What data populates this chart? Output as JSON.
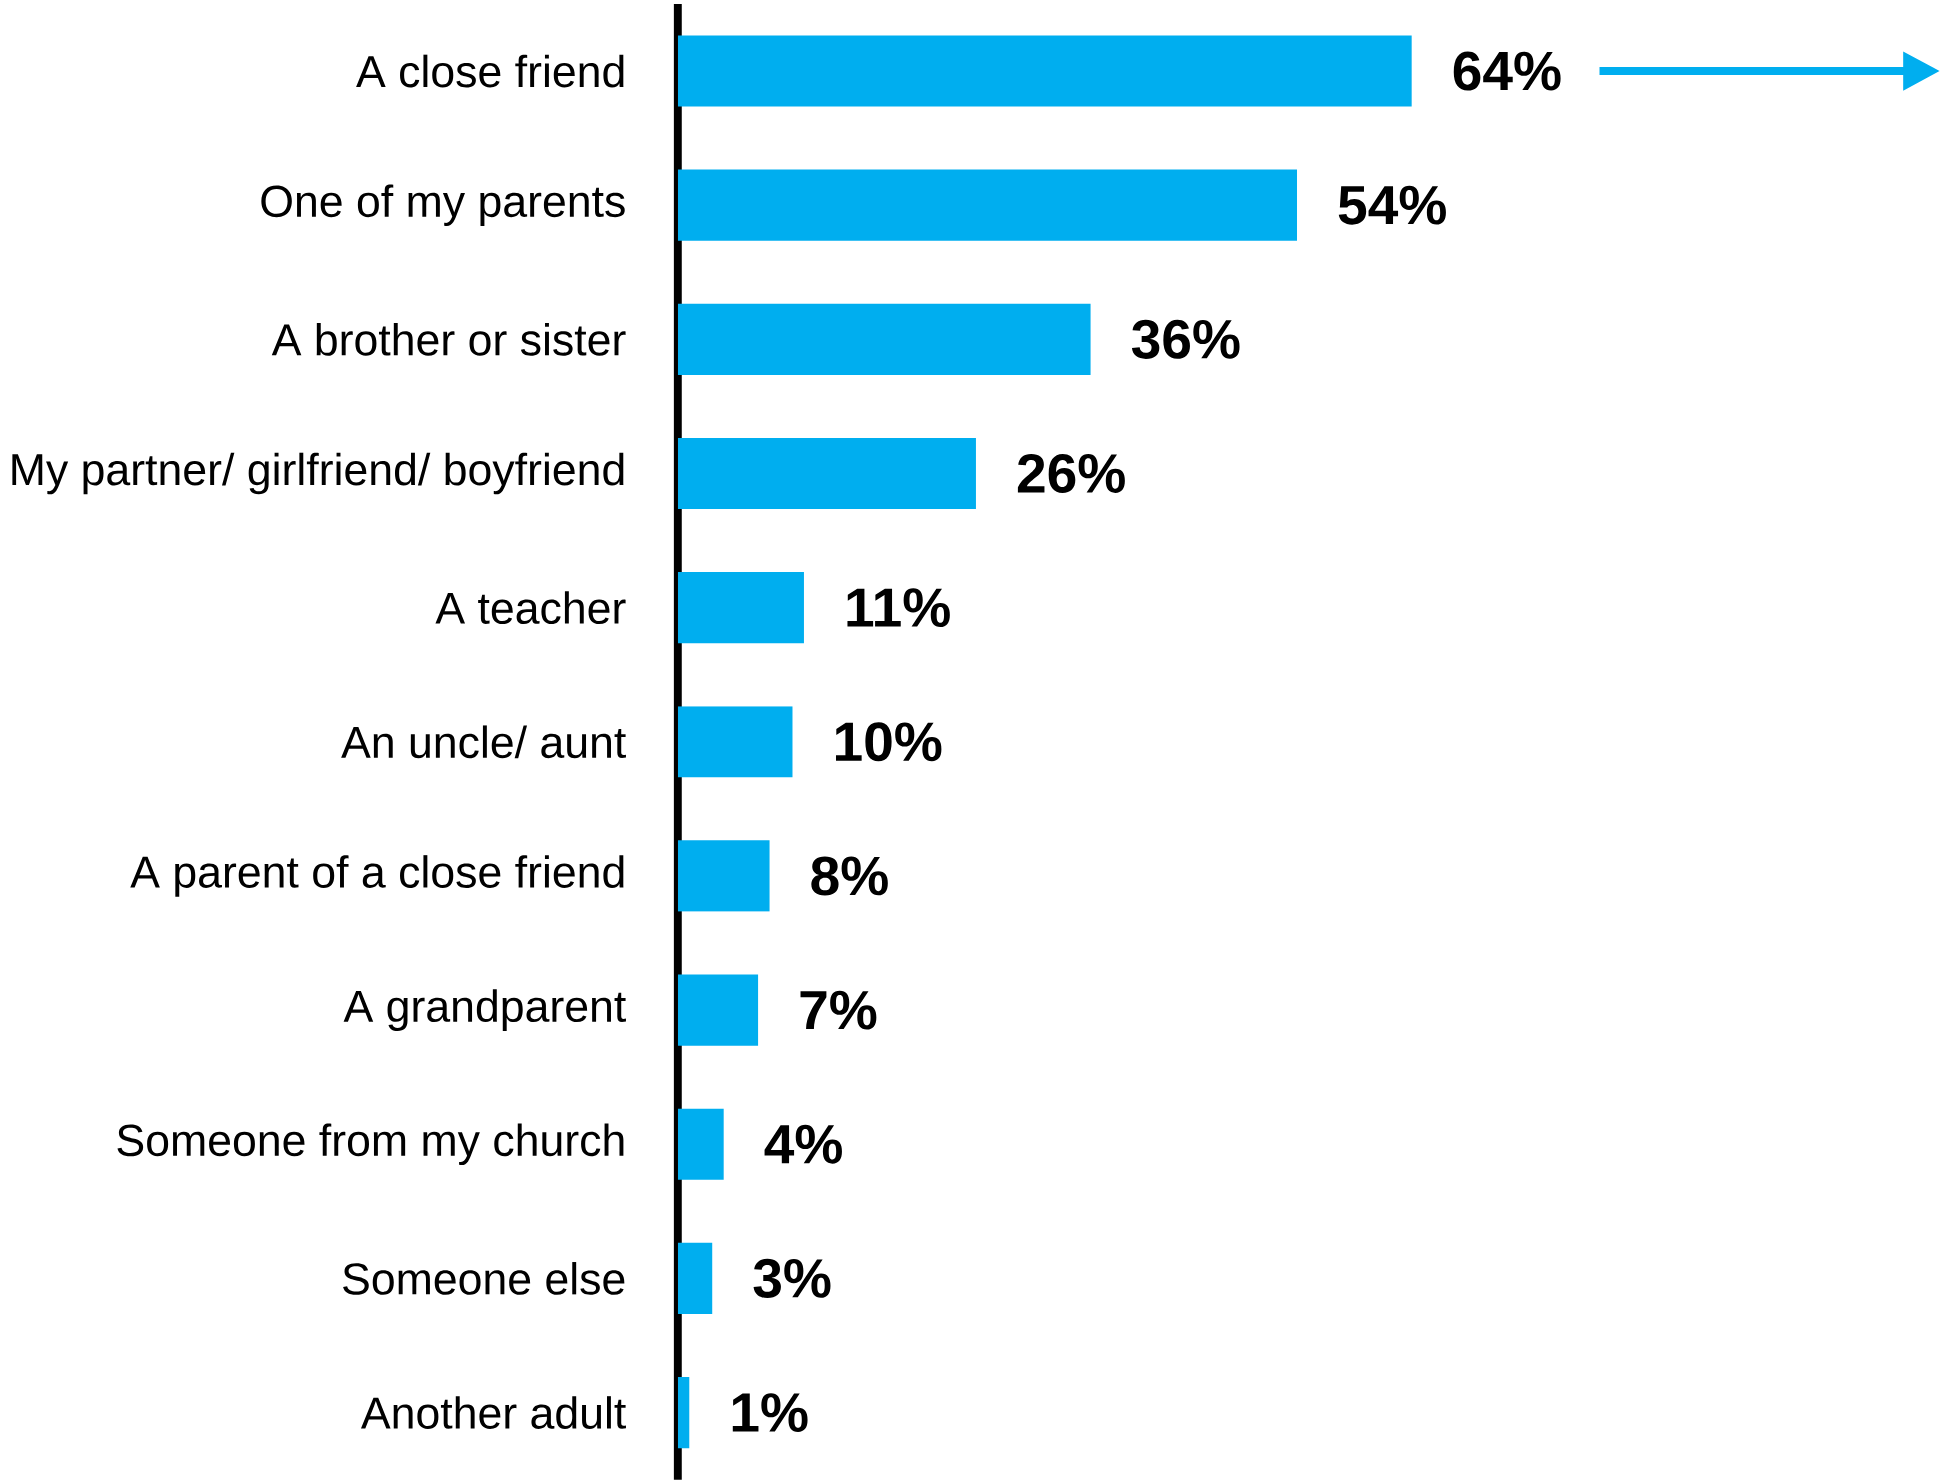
{
  "chart_data": {
    "type": "bar",
    "orientation": "horizontal",
    "categories": [
      "A close friend",
      "One of my parents",
      "A brother or sister",
      "My partner/ girlfriend/ boyfriend",
      "A teacher",
      "An uncle/ aunt",
      "A parent of a close friend",
      "A grandparent",
      "Someone from my church",
      "Someone else",
      "Another adult"
    ],
    "values": [
      64,
      54,
      36,
      26,
      11,
      10,
      8,
      7,
      4,
      3,
      1
    ],
    "value_labels": [
      "64%",
      "54%",
      "36%",
      "26%",
      "11%",
      "10%",
      "8%",
      "7%",
      "4%",
      "3%",
      "1%"
    ],
    "color": "#00aeef",
    "tick_labels": "y"
  }
}
